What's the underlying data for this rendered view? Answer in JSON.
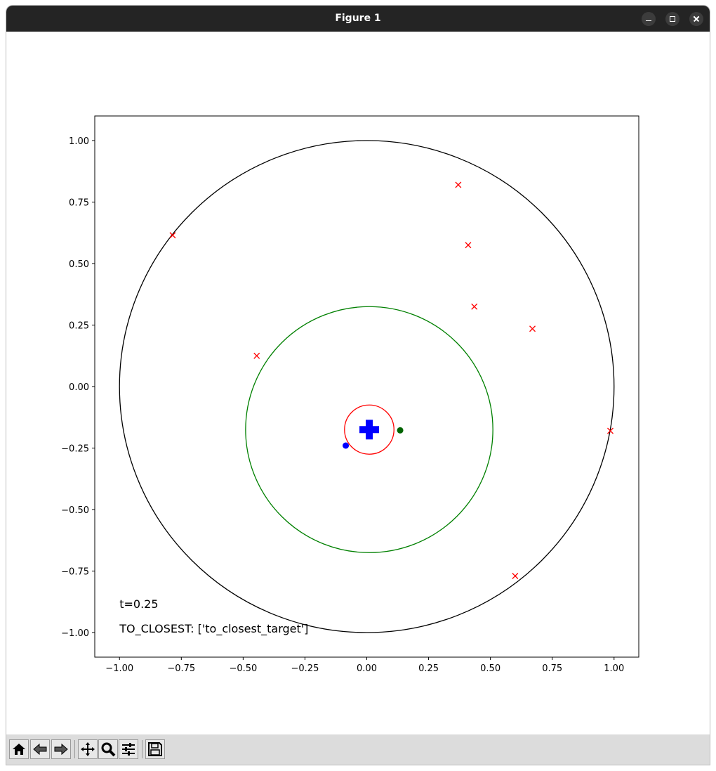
{
  "window": {
    "title": "Figure 1"
  },
  "toolbar": {
    "buttons": [
      {
        "name": "home-icon"
      },
      {
        "name": "back-icon"
      },
      {
        "name": "forward-icon"
      },
      {
        "name": "pan-icon"
      },
      {
        "name": "zoom-icon"
      },
      {
        "name": "configure-subplots-icon"
      },
      {
        "name": "save-icon"
      }
    ]
  },
  "chart_data": {
    "type": "scatter",
    "xlim": [
      -1.1,
      1.1
    ],
    "ylim": [
      -1.1,
      1.1
    ],
    "xticks": [
      -1.0,
      -0.75,
      -0.5,
      -0.25,
      0.0,
      0.25,
      0.5,
      0.75,
      1.0
    ],
    "yticks": [
      -1.0,
      -0.75,
      -0.5,
      -0.25,
      0.0,
      0.25,
      0.5,
      0.75,
      1.0
    ],
    "xtick_labels": [
      "−1.00",
      "−0.75",
      "−0.50",
      "−0.25",
      "0.00",
      "0.25",
      "0.50",
      "0.75",
      "1.00"
    ],
    "ytick_labels": [
      "−1.00",
      "−0.75",
      "−0.50",
      "−0.25",
      "0.00",
      "0.25",
      "0.50",
      "0.75",
      "1.00"
    ],
    "grid": false,
    "circles": [
      {
        "cx": 0.0,
        "cy": 0.0,
        "r": 1.0,
        "color": "#000000"
      },
      {
        "cx": 0.01,
        "cy": -0.175,
        "r": 0.5,
        "color": "#008000"
      },
      {
        "cx": 0.01,
        "cy": -0.175,
        "r": 0.1,
        "color": "#ff0000"
      }
    ],
    "targets": {
      "marker": "x",
      "color": "#ff0000",
      "points": [
        [
          -0.785,
          0.615
        ],
        [
          0.37,
          0.82
        ],
        [
          0.41,
          0.575
        ],
        [
          0.435,
          0.325
        ],
        [
          0.67,
          0.235
        ],
        [
          -0.445,
          0.125
        ],
        [
          0.985,
          -0.18
        ],
        [
          0.6,
          -0.77
        ]
      ]
    },
    "agent": {
      "marker": "plus",
      "color": "#0000ff",
      "x": 0.01,
      "y": -0.175
    },
    "markers": [
      {
        "marker": "circle",
        "color": "#0000ff",
        "x": -0.085,
        "y": -0.24
      },
      {
        "marker": "circle",
        "color": "#006400",
        "x": 0.135,
        "y": -0.178
      }
    ],
    "annotations": [
      {
        "text": "t=0.25",
        "x": -1.0,
        "y": -0.9
      },
      {
        "text": "TO_CLOSEST: ['to_closest_target']",
        "x": -1.0,
        "y": -1.0
      }
    ]
  }
}
